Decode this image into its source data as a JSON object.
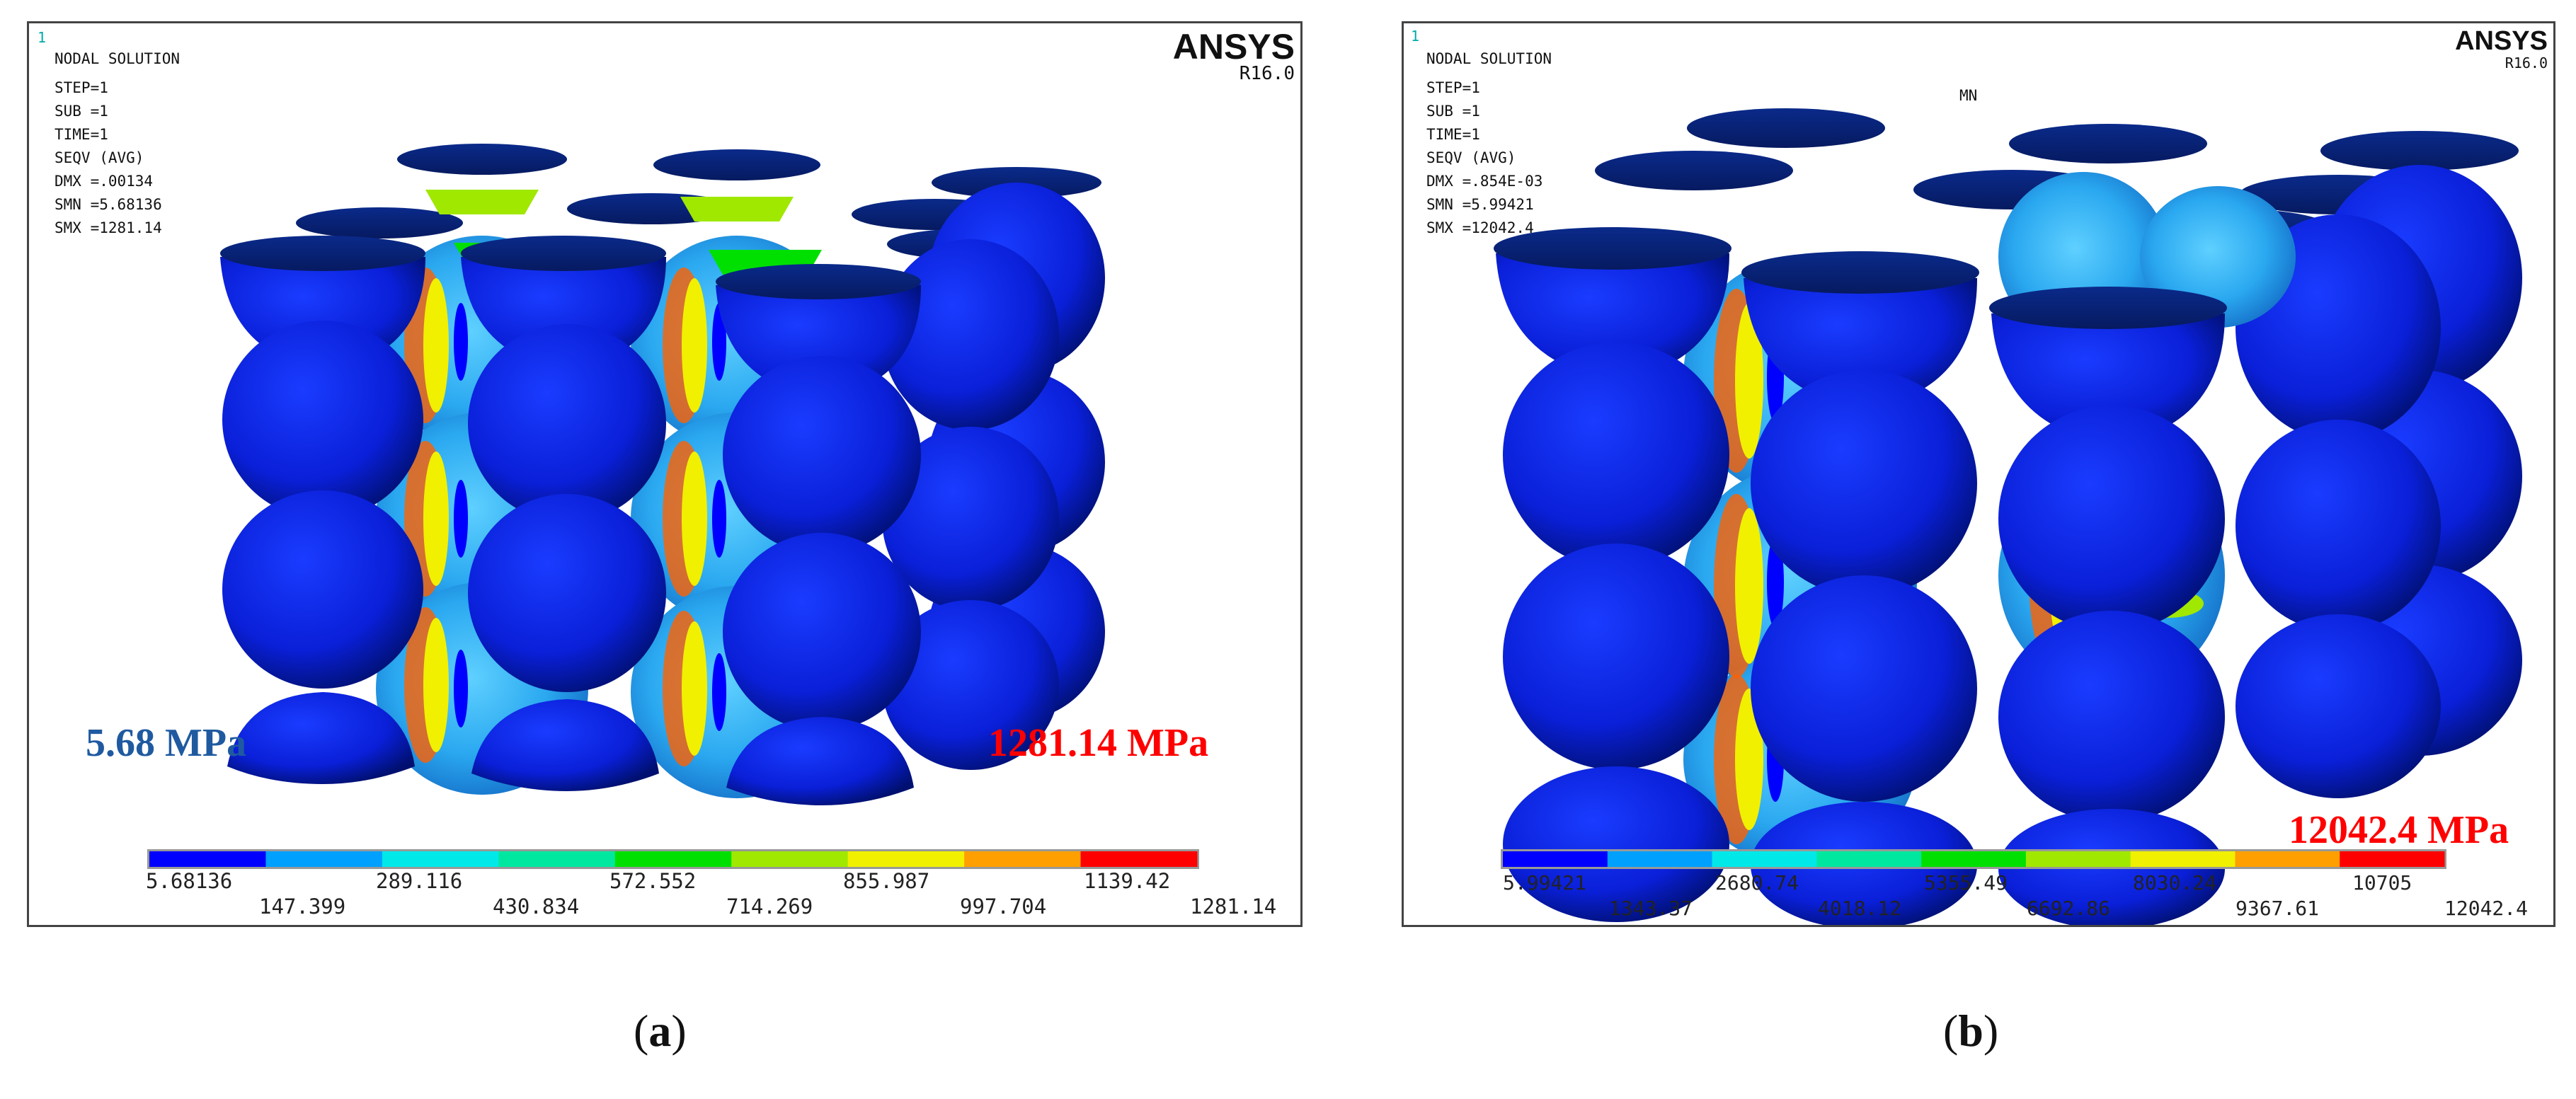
{
  "panel_a": {
    "window_number": "1",
    "title": "NODAL SOLUTION",
    "info_lines": [
      "STEP=1",
      "SUB =1",
      "TIME=1",
      "SEQV      (AVG)",
      "DMX =.00134",
      "SMN =5.68136",
      "SMX =1281.14"
    ],
    "logo": "ANSYS",
    "version": "R16.0",
    "min_annotation": "5.68 MPa",
    "max_annotation": "1281.14 MPa",
    "legend_top": [
      "5.68136",
      "289.116",
      "572.552",
      "855.987",
      "1139.42"
    ],
    "legend_bottom": [
      "147.399",
      "430.834",
      "714.269",
      "997.704",
      "1281.14"
    ],
    "caption": "a"
  },
  "panel_b": {
    "window_number": "1",
    "title": "NODAL SOLUTION",
    "info_lines": [
      "STEP=1",
      "SUB =1",
      "TIME=1",
      "SEQV      (AVG)",
      "DMX =.854E-03",
      "SMN =5.99421",
      "SMX =12042.4"
    ],
    "logo": "ANSYS",
    "version": "R16.0",
    "mn_label": "MN",
    "max_annotation": "12042.4 MPa",
    "legend_top": [
      "5.99421",
      "2680.74",
      "5355.49",
      "8030.24",
      "10705"
    ],
    "legend_bottom": [
      "1343.37",
      "4018.12",
      "6692.86",
      "9367.61",
      "12042.4"
    ],
    "caption": "b"
  },
  "colors": {
    "contour": [
      "#0000ff",
      "#00a0ff",
      "#00e8e8",
      "#00e8a0",
      "#00e000",
      "#a0e800",
      "#f0f000",
      "#ffa000",
      "#ff0000"
    ],
    "min_annotation": "#1f5aa0",
    "max_annotation": "#ff0000"
  }
}
